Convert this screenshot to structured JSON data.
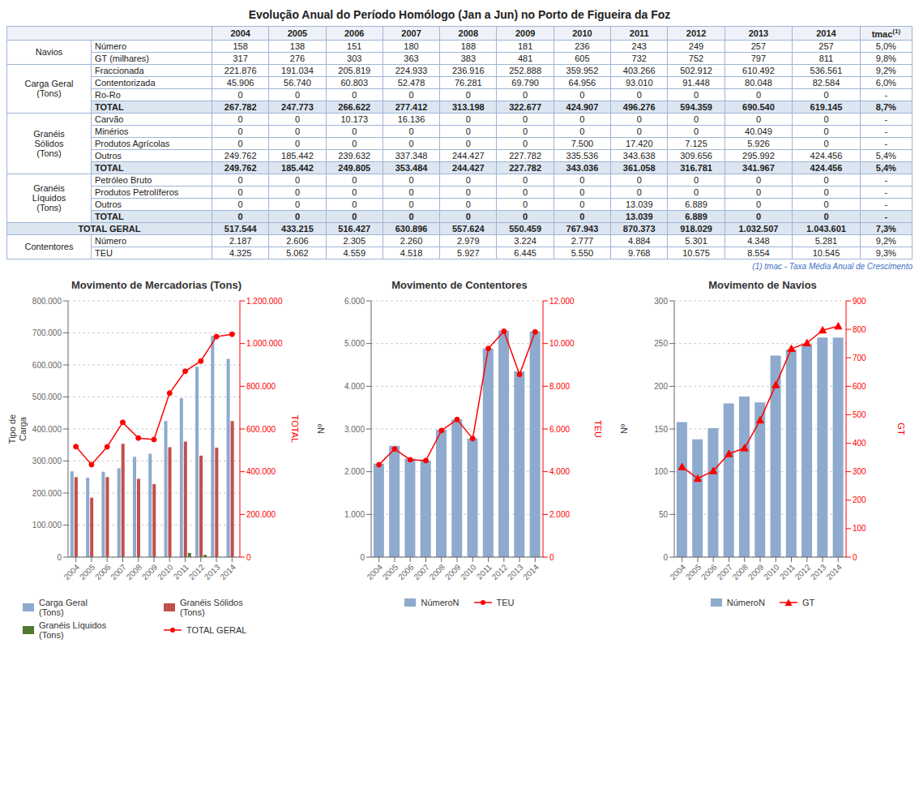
{
  "chart_data": [
    {
      "type": "table",
      "title": "Evolução Anual do Período Homólogo (Jan a Jun) no Porto de Figueira da Foz",
      "columns": [
        "2004",
        "2005",
        "2006",
        "2007",
        "2008",
        "2009",
        "2010",
        "2011",
        "2012",
        "2013",
        "2014",
        "tmac"
      ],
      "column_note": "(1)",
      "footnote": "(1) tmac - Taxa Média Anual de Crescimento",
      "sections": [
        {
          "name": "Navios",
          "rows": [
            {
              "name": "Número",
              "cells": [
                "158",
                "138",
                "151",
                "180",
                "188",
                "181",
                "236",
                "243",
                "249",
                "257",
                "257",
                "5,0%"
              ]
            },
            {
              "name": "GT (milhares)",
              "cells": [
                "317",
                "276",
                "303",
                "363",
                "383",
                "481",
                "605",
                "732",
                "752",
                "797",
                "811",
                "9,8%"
              ]
            }
          ]
        },
        {
          "name": "Carga Geral\n(Tons)",
          "rows": [
            {
              "name": "Fraccionada",
              "cells": [
                "221.876",
                "191.034",
                "205.819",
                "224.933",
                "236.916",
                "252.888",
                "359.952",
                "403.266",
                "502.912",
                "610.492",
                "536.561",
                "9,2%"
              ]
            },
            {
              "name": "Contentorizada",
              "cells": [
                "45.906",
                "56.740",
                "60.803",
                "52.478",
                "76.281",
                "69.790",
                "64.956",
                "93.010",
                "91.448",
                "80.048",
                "82.584",
                "6,0%"
              ]
            },
            {
              "name": "Ro-Ro",
              "cells": [
                "0",
                "0",
                "0",
                "0",
                "0",
                "0",
                "0",
                "0",
                "0",
                "0",
                "0",
                "-"
              ]
            },
            {
              "name": "TOTAL",
              "color": "#dce6f1",
              "cells": [
                "267.782",
                "247.773",
                "266.622",
                "277.412",
                "313.198",
                "322.677",
                "424.907",
                "496.276",
                "594.359",
                "690.540",
                "619.145",
                "8,7%"
              ]
            }
          ]
        },
        {
          "name": "Granéis\nSólidos\n(Tons)",
          "rows": [
            {
              "name": "Carvão",
              "cells": [
                "0",
                "0",
                "10.173",
                "16.136",
                "0",
                "0",
                "0",
                "0",
                "0",
                "0",
                "0",
                "-"
              ]
            },
            {
              "name": "Minérios",
              "cells": [
                "0",
                "0",
                "0",
                "0",
                "0",
                "0",
                "0",
                "0",
                "0",
                "40.049",
                "0",
                "-"
              ]
            },
            {
              "name": "Produtos Agrícolas",
              "cells": [
                "0",
                "0",
                "0",
                "0",
                "0",
                "0",
                "7.500",
                "17.420",
                "7.125",
                "5.926",
                "0",
                "-"
              ]
            },
            {
              "name": "Outros",
              "cells": [
                "249.762",
                "185.442",
                "239.632",
                "337.348",
                "244.427",
                "227.782",
                "335.536",
                "343.638",
                "309.656",
                "295.992",
                "424.456",
                "5,4%"
              ]
            },
            {
              "name": "TOTAL",
              "color": "#dce6f1",
              "cells": [
                "249.762",
                "185.442",
                "249.805",
                "353.484",
                "244.427",
                "227.782",
                "343.036",
                "361.058",
                "316.781",
                "341.967",
                "424.456",
                "5,4%"
              ]
            }
          ]
        },
        {
          "name": "Granéis\nLíquidos\n(Tons)",
          "rows": [
            {
              "name": "Petróleo Bruto",
              "cells": [
                "0",
                "0",
                "0",
                "0",
                "0",
                "0",
                "0",
                "0",
                "0",
                "0",
                "0",
                "-"
              ]
            },
            {
              "name": "Produtos Petrolíferos",
              "cells": [
                "0",
                "0",
                "0",
                "0",
                "0",
                "0",
                "0",
                "0",
                "0",
                "0",
                "0",
                "-"
              ]
            },
            {
              "name": "Outros",
              "cells": [
                "0",
                "0",
                "0",
                "0",
                "0",
                "0",
                "0",
                "13.039",
                "6.889",
                "0",
                "0",
                "-"
              ]
            },
            {
              "name": "TOTAL",
              "color": "#dce6f1",
              "cells": [
                "0",
                "0",
                "0",
                "0",
                "0",
                "0",
                "0",
                "13.039",
                "6.889",
                "0",
                "0",
                "-"
              ]
            }
          ]
        },
        {
          "name": "TOTAL GERAL",
          "rows": [
            {
              "color": "#dce6f1",
              "cells": [
                "517.544",
                "433.215",
                "516.427",
                "630.896",
                "557.624",
                "550.459",
                "767.943",
                "870.373",
                "918.029",
                "1.032.507",
                "1.043.601",
                "7,3%"
              ]
            }
          ]
        },
        {
          "name": "Contentores",
          "rows": [
            {
              "name": "Número",
              "cells": [
                "2.187",
                "2.606",
                "2.305",
                "2.260",
                "2.979",
                "3.224",
                "2.777",
                "4.884",
                "5.301",
                "4.348",
                "5.281",
                "9,2%"
              ]
            },
            {
              "name": "TEU",
              "cells": [
                "4.325",
                "5.062",
                "4.559",
                "4.518",
                "5.927",
                "6.445",
                "5.550",
                "9.768",
                "10.575",
                "8.554",
                "10.545",
                "9,3%"
              ]
            }
          ]
        }
      ]
    },
    {
      "type": "bar",
      "title": "Movimento  de Mercadorias (Tons)",
      "categories": [
        "2004",
        "2005",
        "2006",
        "2007",
        "2008",
        "2009",
        "2010",
        "2011",
        "2012",
        "2013",
        "2014"
      ],
      "ylabel": "Tipo de\nCarga",
      "y2label": "TOTAL",
      "series": [
        {
          "name": "Carga Geral\n(Tons)",
          "type": "bar",
          "color": "#8eaacd",
          "values": [
            267782,
            247773,
            266622,
            277412,
            313198,
            322677,
            424907,
            496276,
            594359,
            690540,
            619145
          ]
        },
        {
          "name": "Granéis Sólidos\n(Tons)",
          "type": "bar",
          "color": "#c0504d",
          "values": [
            249762,
            185442,
            249805,
            353484,
            244427,
            227782,
            343036,
            361058,
            316781,
            341967,
            424456
          ]
        },
        {
          "name": "Granéis Líquidos\n(Tons)",
          "type": "bar",
          "color": "#4f7830",
          "values": [
            0,
            0,
            0,
            0,
            0,
            0,
            0,
            13039,
            6889,
            0,
            0
          ]
        },
        {
          "name": "TOTAL GERAL",
          "type": "line",
          "axis": "y2",
          "color": "#ff0000",
          "marker": "circle",
          "values": [
            517544,
            433215,
            516427,
            630896,
            557624,
            550459,
            767943,
            870373,
            918029,
            1032507,
            1043601
          ]
        }
      ],
      "ylim": [
        0,
        800000
      ],
      "yticks": [
        0,
        {
          "value": 100000,
          "label": "100.000"
        },
        {
          "value": 200000,
          "label": "200.000"
        },
        {
          "value": 300000,
          "label": "300.000"
        },
        {
          "value": 400000,
          "label": "400.000"
        },
        {
          "value": 500000,
          "label": "500.000"
        },
        {
          "value": 600000,
          "label": "600.000"
        },
        {
          "value": 700000,
          "label": "700.000"
        },
        {
          "value": 800000,
          "label": "800.000"
        }
      ],
      "y2lim": [
        0,
        1200000
      ],
      "y2ticks": [
        0,
        {
          "value": 200000,
          "label": "200.000"
        },
        {
          "value": 400000,
          "label": "400.000"
        },
        {
          "value": 600000,
          "label": "600.000"
        },
        {
          "value": 800000,
          "label": "800.000"
        },
        {
          "value": 1000000,
          "label": "1.000.000"
        },
        {
          "value": 1200000,
          "label": "1.200.000"
        }
      ],
      "grid": true,
      "legend": "bottom"
    },
    {
      "type": "bar",
      "title": "Movimento de Contentores",
      "categories": [
        "2004",
        "2005",
        "2006",
        "2007",
        "2008",
        "2009",
        "2010",
        "2011",
        "2012",
        "2013",
        "2014"
      ],
      "ylabel": "Nº",
      "y2label": "TEU",
      "series": [
        {
          "name": "NúmeroN",
          "type": "bar",
          "color": "#8eaacd",
          "values": [
            2187,
            2606,
            2305,
            2260,
            2979,
            3224,
            2777,
            4884,
            5301,
            4348,
            5281
          ]
        },
        {
          "name": "TEU",
          "type": "line",
          "axis": "y2",
          "color": "#ff0000",
          "marker": "circle",
          "values": [
            4325,
            5062,
            4559,
            4518,
            5927,
            6445,
            5550,
            9768,
            10575,
            8554,
            10545
          ]
        }
      ],
      "ylim": [
        0,
        6000
      ],
      "yticks": [
        0,
        {
          "value": 1000,
          "label": "1.000"
        },
        {
          "value": 2000,
          "label": "2.000"
        },
        {
          "value": 3000,
          "label": "3.000"
        },
        {
          "value": 4000,
          "label": "4.000"
        },
        {
          "value": 5000,
          "label": "5.000"
        },
        {
          "value": 6000,
          "label": "6.000"
        }
      ],
      "y2lim": [
        0,
        12000
      ],
      "y2ticks": [
        0,
        {
          "value": 2000,
          "label": "2.000"
        },
        {
          "value": 4000,
          "label": "4.000"
        },
        {
          "value": 6000,
          "label": "6.000"
        },
        {
          "value": 8000,
          "label": "8.000"
        },
        {
          "value": 10000,
          "label": "10.000"
        },
        {
          "value": 12000,
          "label": "12.000"
        }
      ],
      "grid": true,
      "legend": "bottom"
    },
    {
      "type": "bar",
      "title": "Movimento de Navios",
      "categories": [
        "2004",
        "2005",
        "2006",
        "2007",
        "2008",
        "2009",
        "2010",
        "2011",
        "2012",
        "2013",
        "2014"
      ],
      "ylabel": "Nº",
      "y2label": "GT",
      "series": [
        {
          "name": "NúmeroN",
          "type": "bar",
          "color": "#8eaacd",
          "values": [
            158,
            138,
            151,
            180,
            188,
            181,
            236,
            243,
            249,
            257,
            257
          ]
        },
        {
          "name": "GT",
          "type": "line",
          "axis": "y2",
          "color": "#ff0000",
          "marker": "triangle",
          "values": [
            317,
            276,
            303,
            363,
            383,
            481,
            605,
            732,
            752,
            797,
            811
          ]
        }
      ],
      "ylim": [
        0,
        300
      ],
      "yticks": [
        0,
        50,
        100,
        150,
        200,
        250,
        300
      ],
      "y2lim": [
        0,
        900
      ],
      "y2ticks": [
        0,
        100,
        200,
        300,
        400,
        500,
        600,
        700,
        800,
        900
      ],
      "grid": true,
      "legend": "bottom"
    }
  ]
}
